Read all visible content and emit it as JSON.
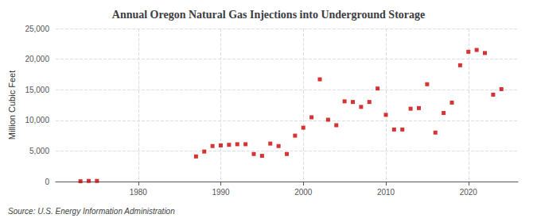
{
  "chart_data": {
    "type": "scatter",
    "title": "Annual Oregon Natural Gas Injections into Underground Storage",
    "ylabel": "Million Cubic Feet",
    "annotations": [
      "Source: U.S. Energy Information Administration"
    ],
    "x": [
      1973,
      1974,
      1975,
      1987,
      1988,
      1989,
      1990,
      1991,
      1992,
      1993,
      1994,
      1995,
      1996,
      1997,
      1998,
      1999,
      2000,
      2001,
      2002,
      2003,
      2004,
      2005,
      2006,
      2007,
      2008,
      2009,
      2010,
      2011,
      2012,
      2013,
      2014,
      2015,
      2016,
      2017,
      2018,
      2019,
      2020,
      2021,
      2022,
      2023,
      2024
    ],
    "values": [
      50,
      100,
      100,
      4100,
      4900,
      5800,
      5900,
      6000,
      6100,
      6100,
      4500,
      4200,
      6200,
      5800,
      4500,
      7500,
      8800,
      10500,
      16700,
      10100,
      9200,
      13100,
      13000,
      12200,
      13000,
      15200,
      10900,
      8500,
      8500,
      11900,
      12000,
      15900,
      8000,
      11200,
      12900,
      19000,
      21200,
      21500,
      21000,
      14200,
      15100
    ],
    "color": "#cc0000",
    "marker": "square",
    "xlim": [
      1970,
      2026
    ],
    "xticks": [
      1980,
      1990,
      2000,
      2010,
      2020
    ],
    "ylim": [
      0,
      25000
    ],
    "yticks": [
      0,
      {
        "value": 5000,
        "label": "5,000"
      },
      {
        "value": 10000,
        "label": "10,000"
      },
      {
        "value": 15000,
        "label": "15,000"
      },
      {
        "value": 20000,
        "label": "20,000"
      },
      {
        "value": 25000,
        "label": "25,000"
      }
    ],
    "grid": true
  }
}
